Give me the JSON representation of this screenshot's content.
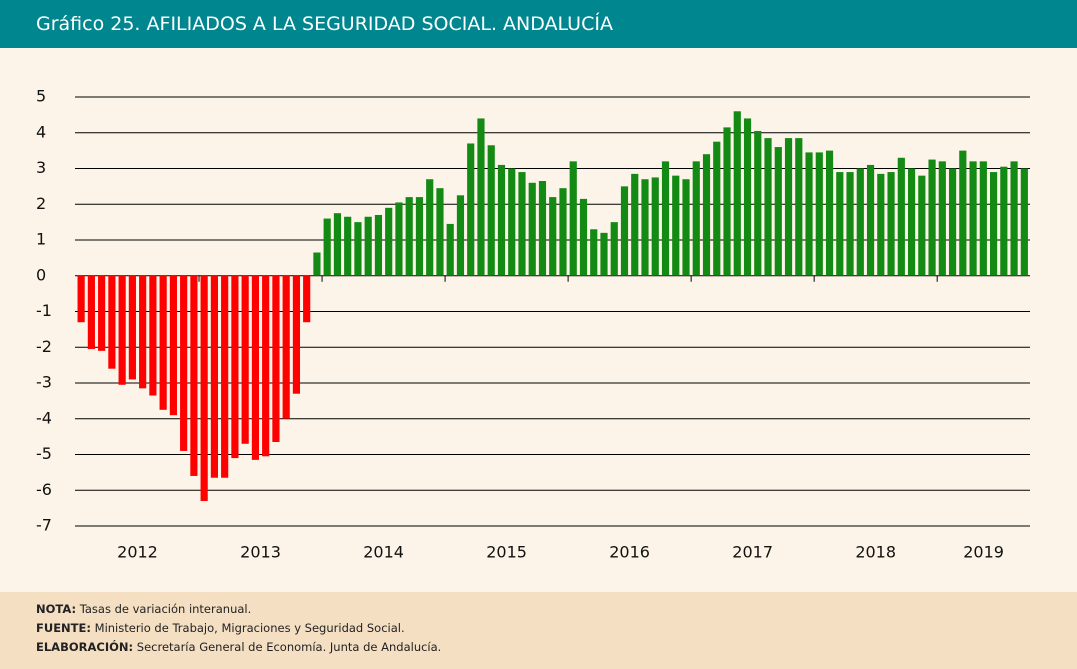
{
  "chart_data": {
    "type": "bar",
    "title": "Gráfico 25. AFILIADOS A LA SEGURIDAD SOCIAL. ANDALUCÍA",
    "x_labels": [
      "2012",
      "2013",
      "2014",
      "2015",
      "2016",
      "2017",
      "2018",
      "2019"
    ],
    "values": [
      -1.3,
      -2.05,
      -2.1,
      -2.6,
      -3.05,
      -2.9,
      -3.15,
      -3.35,
      -3.75,
      -3.9,
      -4.9,
      -5.6,
      -6.3,
      -5.65,
      -5.65,
      -5.1,
      -4.7,
      -5.15,
      -5.05,
      -4.65,
      -4.0,
      -3.3,
      -1.3,
      0.65,
      1.6,
      1.75,
      1.65,
      1.5,
      1.65,
      1.7,
      1.9,
      2.05,
      2.2,
      2.2,
      2.7,
      2.45,
      1.45,
      2.25,
      3.7,
      4.4,
      3.65,
      3.1,
      3.0,
      2.9,
      2.6,
      2.65,
      2.2,
      2.45,
      3.2,
      2.15,
      1.3,
      1.2,
      1.5,
      2.5,
      2.85,
      2.7,
      2.75,
      3.2,
      2.8,
      2.7,
      3.2,
      3.4,
      3.75,
      4.15,
      4.6,
      4.4,
      4.05,
      3.85,
      3.6,
      3.85,
      3.85,
      3.45,
      3.45,
      3.5,
      2.9,
      2.9,
      3.0,
      3.1,
      2.85,
      2.9,
      3.3,
      3.0,
      2.8,
      3.25,
      3.2,
      3.0,
      3.5,
      3.2,
      3.2,
      2.9,
      3.05,
      3.2,
      3.0
    ],
    "negative_color": "#ff0000",
    "positive_color": "#138a13",
    "ylim": [
      -7,
      5
    ],
    "yticks": [
      -7,
      -6,
      -5,
      -4,
      -3,
      -2,
      -1,
      0,
      1,
      2,
      3,
      4,
      5
    ],
    "grid": true
  },
  "notes": [
    {
      "label": "NOTA:",
      "text": "Tasas de variación interanual."
    },
    {
      "label": "FUENTE:",
      "text": "Ministerio de Trabajo, Migraciones y Seguridad Social."
    },
    {
      "label": "ELABORACIÓN:",
      "text": "Secretaría General de Economía. Junta de Andalucía."
    }
  ]
}
